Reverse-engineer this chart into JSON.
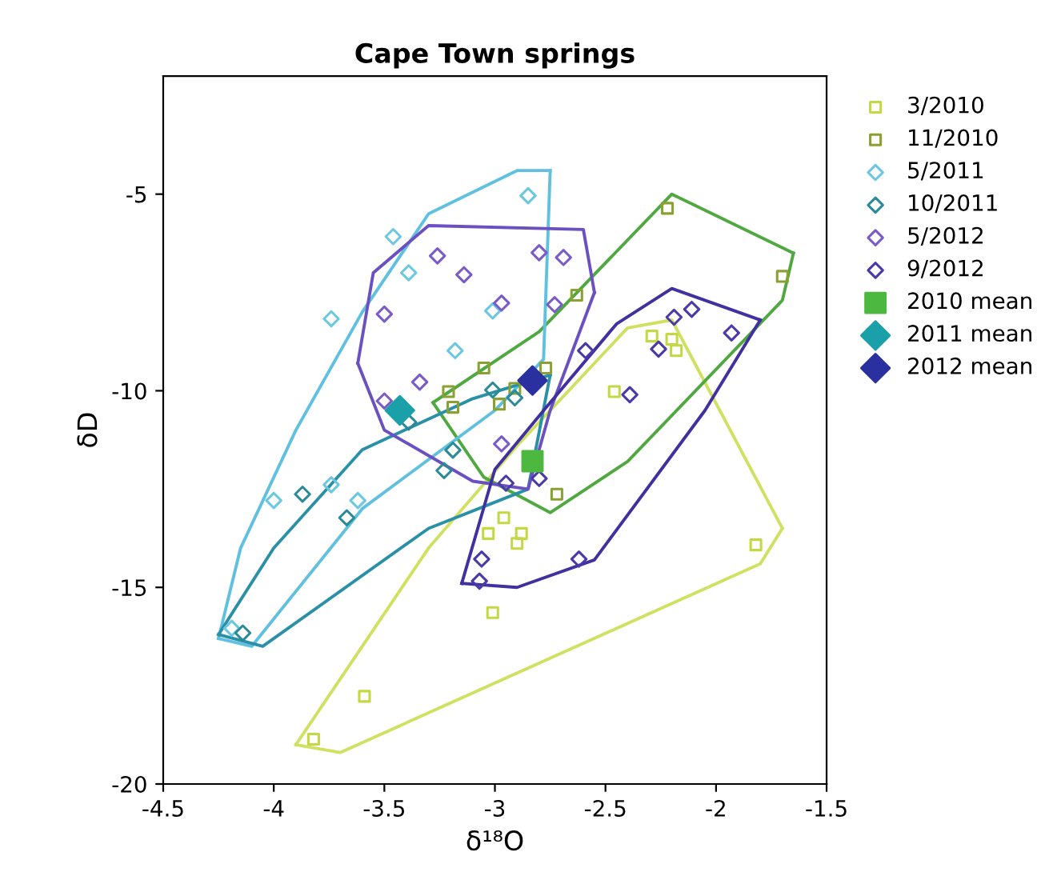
{
  "chart_data": {
    "type": "scatter",
    "title": "Cape Town springs",
    "xlabel": "δ¹⁸O",
    "ylabel": "δD",
    "xlim": [
      -4.5,
      -1.5
    ],
    "ylim": [
      -20,
      -2
    ],
    "xticks": [
      -4.5,
      -4,
      -3.5,
      -3,
      -2.5,
      -2,
      -1.5
    ],
    "yticks": [
      -20,
      -15,
      -10,
      -5
    ],
    "grid": false,
    "legend": "right",
    "series": [
      {
        "name": "3/2010",
        "color": "#c4d844",
        "marker": "square",
        "x": [
          -2.29,
          -2.2,
          -2.18,
          -2.46,
          -3.59,
          -3.82,
          -2.96,
          -3.03,
          -2.88,
          -2.9,
          -3.01,
          -1.82
        ],
        "values": [
          -8.61,
          -8.69,
          -8.98,
          -10.02,
          -17.77,
          -18.86,
          -13.23,
          -13.63,
          -13.63,
          -13.88,
          -15.64,
          -13.92
        ]
      },
      {
        "name": "11/2010",
        "color": "#8aa030",
        "marker": "square",
        "x": [
          -2.22,
          -1.7,
          -2.63,
          -2.77,
          -3.05,
          -2.91,
          -2.98,
          -3.21,
          -3.19,
          -2.72
        ],
        "values": [
          -5.36,
          -7.09,
          -7.57,
          -9.42,
          -9.42,
          -9.94,
          -10.34,
          -10.02,
          -10.42,
          -12.63
        ]
      },
      {
        "name": "5/2011",
        "color": "#6cc8e0",
        "marker": "diamond",
        "x": [
          -2.85,
          -3.46,
          -3.39,
          -3.74,
          -3.18,
          -3.01,
          -3.74,
          -3.62,
          -4.0,
          -4.19
        ],
        "values": [
          -5.04,
          -6.08,
          -7.0,
          -8.17,
          -8.98,
          -7.97,
          -12.39,
          -12.79,
          -12.79,
          -16.04
        ]
      },
      {
        "name": "10/2011",
        "color": "#2a8a98",
        "marker": "diamond",
        "x": [
          -3.01,
          -2.91,
          -3.19,
          -3.23,
          -3.87,
          -3.67,
          -4.14,
          -3.39
        ],
        "values": [
          -9.98,
          -10.18,
          -11.51,
          -12.03,
          -12.63,
          -13.23,
          -16.16,
          -10.8
        ]
      },
      {
        "name": "5/2012",
        "color": "#7a5cc8",
        "marker": "diamond",
        "x": [
          -3.26,
          -3.14,
          -3.5,
          -2.97,
          -3.34,
          -3.5,
          -2.97,
          -2.8,
          -2.69,
          -2.73
        ],
        "values": [
          -6.57,
          -7.05,
          -8.05,
          -7.77,
          -9.78,
          -10.26,
          -11.35,
          -6.49,
          -6.61,
          -7.81
        ]
      },
      {
        "name": "9/2012",
        "color": "#4a3aa8",
        "marker": "diamond",
        "x": [
          -2.59,
          -2.19,
          -2.11,
          -1.93,
          -2.26,
          -2.39,
          -2.95,
          -2.8,
          -3.06,
          -3.07,
          -2.62
        ],
        "values": [
          -8.98,
          -8.13,
          -7.93,
          -8.53,
          -8.94,
          -10.1,
          -12.35,
          -12.23,
          -14.28,
          -14.84,
          -14.28
        ]
      },
      {
        "name": "2010 mean",
        "color": "#4cb840",
        "marker": "square",
        "x": [
          -2.83
        ],
        "values": [
          -11.79
        ]
      },
      {
        "name": "2011 mean",
        "color": "#1aa0a8",
        "marker": "diamond",
        "x": [
          -3.43
        ],
        "values": [
          -10.5
        ]
      },
      {
        "name": "2012 mean",
        "color": "#2a30a0",
        "marker": "diamond",
        "x": [
          -2.83
        ],
        "values": [
          -9.74
        ]
      },
      {
        "type": "line",
        "color": "#d0e060",
        "x": [
          -3.9,
          -3.3,
          -2.9,
          -2.4,
          -2.2,
          -1.7
        ],
        "values": [
          -19.0,
          -14.0,
          -11.4,
          -8.4,
          -8.2,
          -13.5
        ]
      },
      {
        "type": "line",
        "color": "#d0e060",
        "x": [
          -3.9,
          -3.7,
          -1.8,
          -1.7
        ],
        "values": [
          -19.0,
          -19.2,
          -14.4,
          -13.5
        ]
      },
      {
        "type": "line",
        "color": "#50a840",
        "x": [
          -3.28,
          -2.8,
          -2.2,
          -1.65
        ],
        "values": [
          -10.3,
          -8.5,
          -5.0,
          -6.5
        ]
      },
      {
        "type": "line",
        "color": "#50a840",
        "x": [
          -3.28,
          -3.05,
          -2.75,
          -2.4,
          -1.7,
          -1.65
        ],
        "values": [
          -10.3,
          -12.2,
          -13.1,
          -11.8,
          -7.7,
          -6.5
        ]
      },
      {
        "type": "line",
        "color": "#60c0e0",
        "x": [
          -4.25,
          -4.15,
          -3.9,
          -3.6,
          -3.3,
          -2.9,
          -2.75
        ],
        "values": [
          -16.3,
          -14.0,
          -11.0,
          -8.0,
          -5.5,
          -4.4,
          -4.4
        ]
      },
      {
        "type": "line",
        "color": "#60c0e0",
        "x": [
          -4.25,
          -4.1,
          -3.6,
          -3.0,
          -2.78,
          -2.75
        ],
        "values": [
          -16.3,
          -16.5,
          -13.0,
          -10.5,
          -9.2,
          -4.4
        ]
      },
      {
        "type": "line",
        "color": "#2a90a8",
        "x": [
          -4.25,
          -4.0,
          -3.6,
          -3.1,
          -2.75
        ],
        "values": [
          -16.2,
          -14.0,
          -11.5,
          -10.2,
          -9.6
        ]
      },
      {
        "type": "line",
        "color": "#2a90a8",
        "x": [
          -4.25,
          -4.05,
          -3.3,
          -2.85,
          -2.75
        ],
        "values": [
          -16.2,
          -16.5,
          -13.5,
          -12.5,
          -9.6
        ]
      },
      {
        "type": "line",
        "color": "#6a50c0",
        "x": [
          -3.62,
          -3.55,
          -3.3,
          -2.6,
          -2.55
        ],
        "values": [
          -9.3,
          -7.0,
          -5.8,
          -5.9,
          -7.5
        ]
      },
      {
        "type": "line",
        "color": "#6a50c0",
        "x": [
          -3.62,
          -3.5,
          -3.1,
          -2.85,
          -2.75,
          -2.55
        ],
        "values": [
          -9.3,
          -11.0,
          -12.3,
          -12.5,
          -10.5,
          -7.5
        ]
      },
      {
        "type": "line",
        "color": "#4030a0",
        "x": [
          -3.15,
          -3.0,
          -2.75,
          -2.45,
          -2.2,
          -1.8
        ],
        "values": [
          -14.9,
          -12.0,
          -10.3,
          -8.3,
          -7.4,
          -8.2
        ]
      },
      {
        "type": "line",
        "color": "#4030a0",
        "x": [
          -3.15,
          -2.9,
          -2.55,
          -2.05,
          -1.8
        ],
        "values": [
          -14.9,
          -15.0,
          -14.3,
          -10.5,
          -8.2
        ]
      }
    ]
  }
}
